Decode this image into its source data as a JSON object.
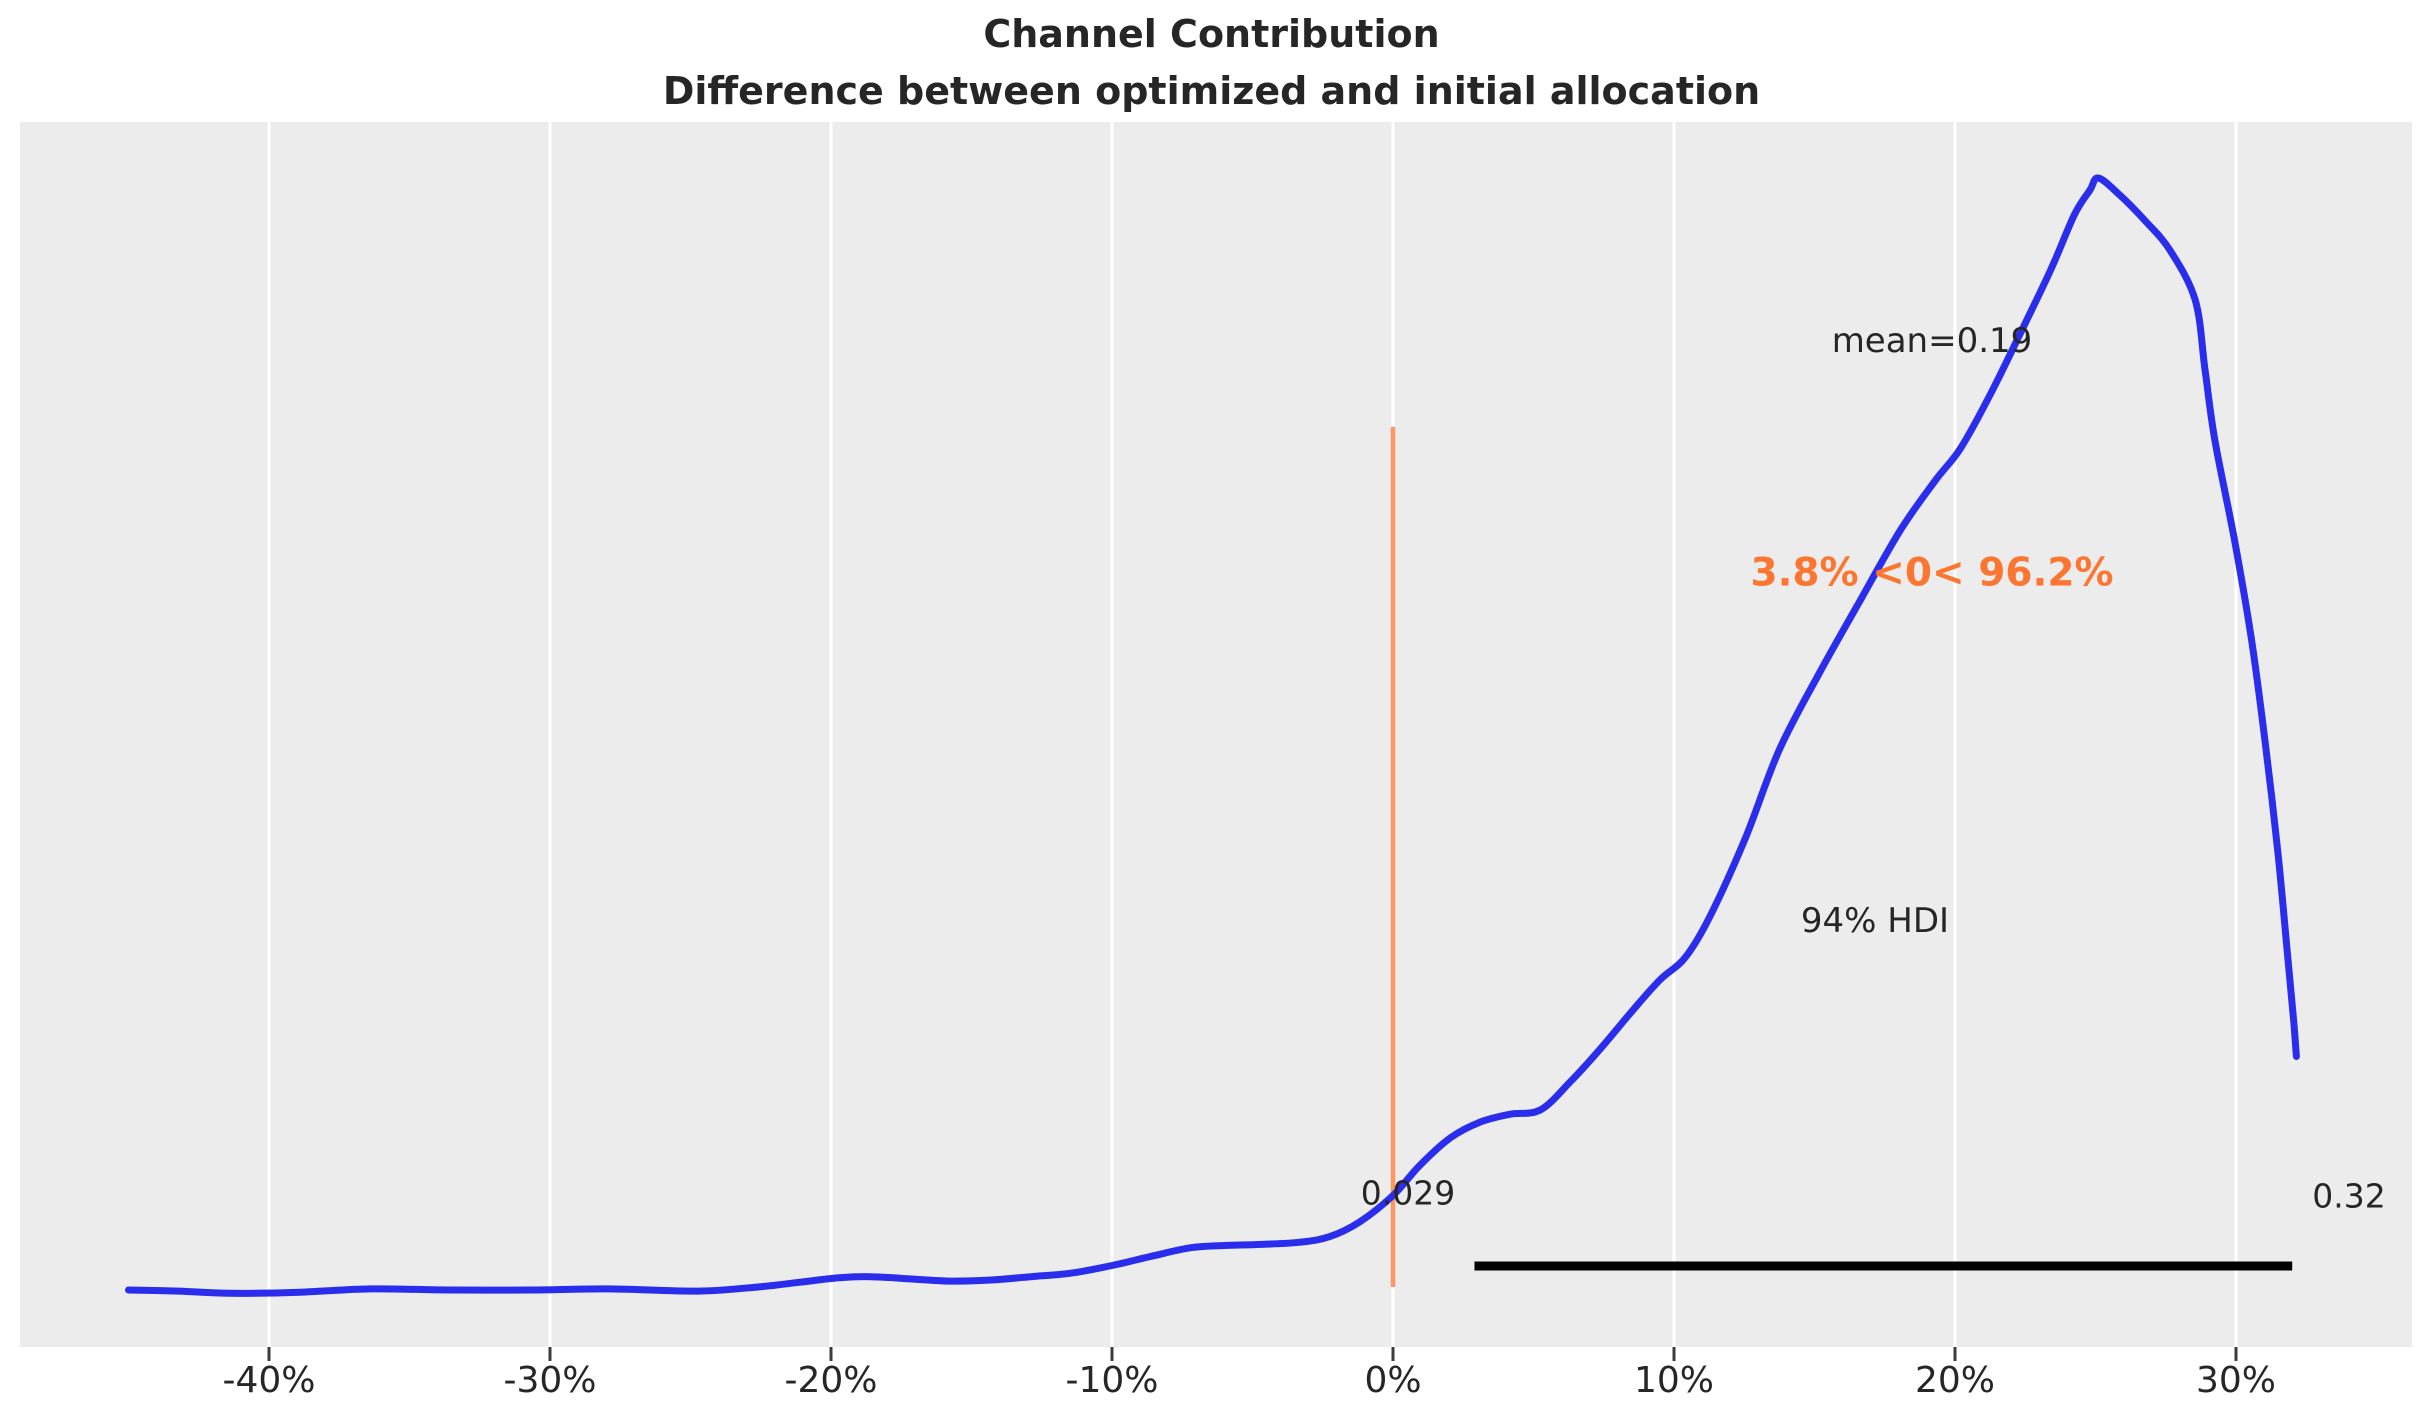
{
  "title": {
    "line1": "Channel Contribution",
    "line2": "Difference between optimized and initial allocation"
  },
  "annotations": {
    "mean_label": "mean=0.19",
    "prob_label": "3.8% <0< 96.2%",
    "hdi_label": "94% HDI",
    "hdi_lower_label": "0.029",
    "hdi_upper_label": "0.32"
  },
  "colors": {
    "curve_blue": "#2a2eec",
    "ref_orange": "#fc7631",
    "ref_orange_line": "rgba(252, 118, 49, 0.75)",
    "hdi_black": "#000000",
    "plot_bg": "#ececec",
    "grid_white": "#ffffff",
    "text_dark": "#262626",
    "tick_mark": "#3c3c3c"
  },
  "chart_data": {
    "type": "line",
    "subtype": "kde-posterior-density",
    "title": "Channel Contribution\nDifference between optimized and initial allocation",
    "xlabel": "",
    "ylabel": "",
    "grid": "vertical-white-on-gray",
    "legend": "none",
    "xlim_pct": [
      -48.9,
      36.3
    ],
    "x_ticks": [
      {
        "value": -40,
        "label": "-40%"
      },
      {
        "value": -30,
        "label": "-30%"
      },
      {
        "value": -20,
        "label": "-20%"
      },
      {
        "value": -10,
        "label": "-10%"
      },
      {
        "value": 0,
        "label": "0%"
      },
      {
        "value": 10,
        "label": "10%"
      },
      {
        "value": 20,
        "label": "20%"
      },
      {
        "value": 30,
        "label": "30%"
      }
    ],
    "stats": {
      "mean": 0.19,
      "hdi_prob": 0.94,
      "hdi_lower": 0.029,
      "hdi_upper": 0.32,
      "ref_value": 0,
      "prob_below_ref_pct": 3.8,
      "prob_above_ref_pct": 96.2
    },
    "series": [
      {
        "name": "kde_density",
        "x_is_percent": true,
        "points": [
          [
            -45.0,
            0.0
          ],
          [
            -43.2,
            -0.001
          ],
          [
            -41.4,
            -0.003
          ],
          [
            -38.9,
            -0.002
          ],
          [
            -36.4,
            0.001
          ],
          [
            -33.6,
            0.0
          ],
          [
            -30.7,
            0.0
          ],
          [
            -27.9,
            0.001
          ],
          [
            -24.7,
            -0.001
          ],
          [
            -22.5,
            0.003
          ],
          [
            -21.1,
            0.007
          ],
          [
            -19.7,
            0.011
          ],
          [
            -18.6,
            0.012
          ],
          [
            -17.2,
            0.01
          ],
          [
            -15.8,
            0.008
          ],
          [
            -14.3,
            0.009
          ],
          [
            -12.9,
            0.012
          ],
          [
            -11.5,
            0.015
          ],
          [
            -10.0,
            0.022
          ],
          [
            -8.65,
            0.03
          ],
          [
            -7.2,
            0.038
          ],
          [
            -6.0,
            0.04
          ],
          [
            -4.7,
            0.041
          ],
          [
            -3.3,
            0.043
          ],
          [
            -2.25,
            0.048
          ],
          [
            -1.2,
            0.061
          ],
          [
            0.0,
            0.085
          ],
          [
            0.95,
            0.112
          ],
          [
            2.05,
            0.137
          ],
          [
            3.1,
            0.151
          ],
          [
            4.15,
            0.158
          ],
          [
            5.25,
            0.162
          ],
          [
            6.3,
            0.187
          ],
          [
            7.35,
            0.216
          ],
          [
            8.45,
            0.249
          ],
          [
            9.5,
            0.279
          ],
          [
            10.4,
            0.299
          ],
          [
            11.3,
            0.337
          ],
          [
            12.55,
            0.407
          ],
          [
            13.75,
            0.486
          ],
          [
            15.2,
            0.556
          ],
          [
            16.6,
            0.619
          ],
          [
            18.05,
            0.683
          ],
          [
            19.3,
            0.728
          ],
          [
            20.2,
            0.757
          ],
          [
            21.25,
            0.805
          ],
          [
            22.3,
            0.859
          ],
          [
            23.4,
            0.917
          ],
          [
            24.25,
            0.967
          ],
          [
            24.8,
            0.989
          ],
          [
            25.1,
            1.0
          ],
          [
            25.85,
            0.985
          ],
          [
            26.75,
            0.962
          ],
          [
            27.65,
            0.935
          ],
          [
            28.55,
            0.89
          ],
          [
            28.9,
            0.827
          ],
          [
            29.25,
            0.764
          ],
          [
            29.95,
            0.674
          ],
          [
            30.55,
            0.585
          ],
          [
            31.05,
            0.49
          ],
          [
            31.5,
            0.391
          ],
          [
            31.85,
            0.297
          ],
          [
            32.05,
            0.243
          ],
          [
            32.15,
            0.21
          ]
        ]
      }
    ]
  }
}
